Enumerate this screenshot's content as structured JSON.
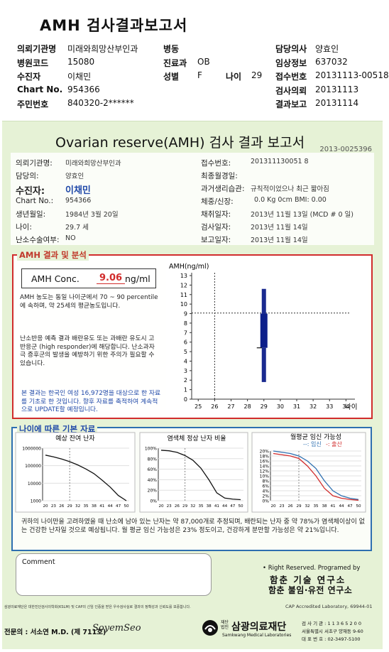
{
  "header": {
    "title": "AMH 검사결과보고서",
    "rows": [
      {
        "l1": "의뢰기관명",
        "v1": "미래와희망산부인과",
        "l2": "병동",
        "v2": "",
        "l3": "담당의사",
        "v3": "양효인"
      },
      {
        "l1": "병원코드",
        "v1": "15080",
        "l2": "진료과",
        "v2": "OB",
        "l3": "임상정보",
        "v3": "637032"
      },
      {
        "l1": "수진자",
        "v1": "이채민",
        "l2": "성별",
        "v2": "F",
        "l2b": "나이",
        "v2b": "29",
        "l3": "접수번호",
        "v3": "20131113-00518"
      },
      {
        "l1": "Chart No.",
        "v1": "954366",
        "l2": "",
        "v2": "",
        "l3": "검사의뢰",
        "v3": "20131113"
      },
      {
        "l1": "주민번호",
        "v1": "840320-2******",
        "l2": "",
        "v2": "",
        "l3": "결과보고",
        "v3": "20131114"
      }
    ]
  },
  "report": {
    "title": "Ovarian reserve(AMH) 검사 결과 보고서",
    "doc_no": "2013-0025396",
    "left": [
      {
        "label": "의뢰기관명:",
        "value": "미래와희망산부인과"
      },
      {
        "label": "담당의:",
        "value": "양효인"
      },
      {
        "label": "수진자:",
        "value": "이채민"
      },
      {
        "label": "Chart No.:",
        "value": "954366"
      },
      {
        "label": "생년월일:",
        "value": "1984년 3월 20일"
      },
      {
        "label": "나이:",
        "value": "29.7 세"
      },
      {
        "label": "난소수술여부:",
        "value": "NO"
      }
    ],
    "right": [
      {
        "label": "접수번호:",
        "value": "201311130051 8"
      },
      {
        "label": "최종월경일:",
        "value": ""
      },
      {
        "label": "과거생리습관:",
        "value": "규칙적이었으나 최근 짧아짐"
      },
      {
        "label": "체중/신장:",
        "value": "0.0 Kg      0cm    BMI: 0.00"
      },
      {
        "label": "채취일자:",
        "value": "2013년 11월 13일  (MCD # 0 일)"
      },
      {
        "label": "검사일자:",
        "value": "2013년 11월 14일"
      },
      {
        "label": "보고일자:",
        "value": "2013년 11월 14일"
      }
    ]
  },
  "amh_section": {
    "heading": "AMH 결과 및 분석",
    "conc_label": "AMH Conc.",
    "conc_value": "9.06",
    "conc_unit": "ng/ml",
    "text1": "AMH 농도는 동일 나이군에서  70 ~ 90 percentile에 속하며, 약  25세의 평균농도입니다.",
    "text2": "난소반응 예측 결과 배란유도 또는 과배란 유도시 고반응군 (high responder)에 해당합니다. 난소과자극 증후군의 발생을 예방하기 위한 주의가 필요할 수 있습니다.",
    "text3": "본 결과는 한국인 여성 16,972명을 대상으로 한 자료를 기초로 한 것입니다. 향후 자료를 축적하여 계속적으로 UPDATE할 예정입니다."
  },
  "chart_data": [
    {
      "type": "box",
      "ylabel": "AMH(ng/ml)",
      "xlabel": "나이",
      "x_ticks": [
        25,
        26,
        27,
        28,
        29,
        30,
        31,
        32,
        33,
        34
      ],
      "y_ticks": [
        0,
        1,
        2,
        3,
        4,
        5,
        6,
        7,
        8,
        9,
        10,
        11,
        12,
        13
      ],
      "ylim": [
        0,
        13
      ],
      "reference_lines": {
        "age": 26,
        "amh": 9.06
      },
      "box": {
        "x": 29,
        "whisker_low": 1.8,
        "q1": 5.4,
        "q3": 9.0,
        "whisker_high": 11.6
      }
    },
    {
      "type": "line",
      "title": "예상 잔여 난자",
      "y_ticks": [
        "1000000",
        "100000",
        "10000",
        "1000"
      ],
      "x_ticks": [
        20,
        23,
        26,
        29,
        32,
        35,
        38,
        41,
        44,
        47,
        50
      ],
      "x": [
        20,
        23,
        26,
        29,
        32,
        35,
        38,
        41,
        44,
        47,
        50
      ],
      "y": [
        400000,
        320000,
        240000,
        170000,
        110000,
        65000,
        35000,
        15000,
        6000,
        2000,
        1000
      ]
    },
    {
      "type": "line",
      "title": "염색체 정상 난자 비율",
      "y_ticks": [
        "100%",
        "80%",
        "60%",
        "40%",
        "20%",
        "0%"
      ],
      "x_ticks": [
        20,
        23,
        26,
        29,
        32,
        35,
        38,
        41,
        44,
        47,
        50
      ],
      "x": [
        20,
        23,
        26,
        29,
        32,
        35,
        38,
        41,
        44,
        47,
        50
      ],
      "y": [
        96,
        95,
        92,
        86,
        77,
        62,
        40,
        15,
        5,
        3,
        2
      ]
    },
    {
      "type": "line",
      "title": "월평균 임신 가능성",
      "legend": [
        "임신",
        "출산"
      ],
      "y_ticks": [
        "20%",
        "18%",
        "16%",
        "14%",
        "12%",
        "10%",
        "8%",
        "6%",
        "4%",
        "2%",
        "0%"
      ],
      "x_ticks": [
        20,
        23,
        26,
        29,
        32,
        35,
        38,
        41,
        44,
        47,
        50
      ],
      "x": [
        20,
        23,
        26,
        29,
        32,
        35,
        38,
        41,
        44,
        47,
        50
      ],
      "series": [
        {
          "name": "임신",
          "values": [
            20,
            19.5,
            19,
            18,
            16,
            13,
            8,
            4,
            2,
            1,
            0.5
          ]
        },
        {
          "name": "출산",
          "values": [
            19,
            18.5,
            18,
            17,
            14,
            10,
            5,
            2,
            1,
            0.5,
            0.2
          ]
        }
      ]
    }
  ],
  "age_section": {
    "heading": "나이에 따른 기본 자료",
    "text": "귀하의 나이만을 고려하였을 때 난소에 남아 있는 난자는 약  87,000개로 추정되며, 배란되는 난자 중 약  78%가 염색체이상이 없는 건강한 난자일 것으로 예상됩니다. 월 평균 임신 가능성은  23% 정도이고, 건강하게 분만할 가능성은 약  21%입니다."
  },
  "comment": {
    "label": "Comment"
  },
  "footer": {
    "rights": "• Right Reserved. Programed by",
    "org1": "함춘 기술 연구소",
    "org2": "함춘 불임·유전 연구소",
    "cert_left": "삼광의료재단은 대한진단검사의학회(KSLM) 및 CAP의 신임 인증을 받은 우수검사실로 결과의 정확성과 신뢰도를 보증합니다.",
    "cert_right": "CAP  Accredited  Laboratory,  69944-01",
    "specialist": "전문의 : 서소연 M.D. (제 711호)",
    "signature": "SoyemSeo",
    "lab_prefix": "재단법인",
    "lab_name": "삼광의료재단",
    "lab_en": "Samkwang Medical Laboratories",
    "contact1": "검 사 기 관 : 1 1 3 6 5 2 0 0",
    "contact2": "서울특별시 서초구 양재동 9-60",
    "contact3": "대 표 번 호 : 02-3497-5100"
  }
}
